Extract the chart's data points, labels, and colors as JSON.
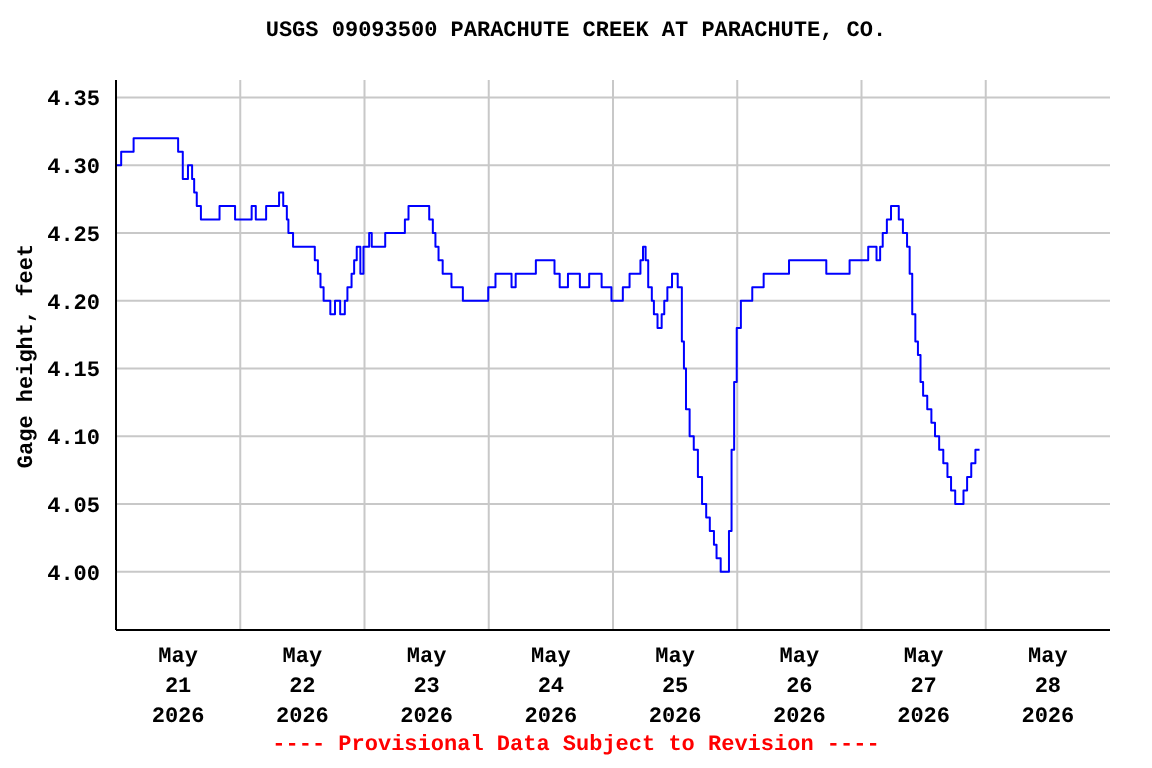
{
  "chart_data": {
    "type": "step",
    "title": "USGS 09093500 PARACHUTE CREEK AT PARACHUTE, CO.",
    "ylabel": "Gage height, feet",
    "annotations": [
      "---- Provisional Data Subject to Revision ----"
    ],
    "grid": true,
    "marker": "none",
    "xlim": [
      "2026-05-21T00:00",
      "2026-05-29T00:00"
    ],
    "xticks": [
      {
        "value": "2026-05-21T12:00",
        "label": "May 21 2026"
      },
      {
        "value": "2026-05-22T00:00",
        "label": null
      },
      {
        "value": "2026-05-22T12:00",
        "label": "May 22 2026"
      },
      {
        "value": "2026-05-23T00:00",
        "label": null
      },
      {
        "value": "2026-05-23T12:00",
        "label": "May 23 2026"
      },
      {
        "value": "2026-05-24T00:00",
        "label": null
      },
      {
        "value": "2026-05-24T12:00",
        "label": "May 24 2026"
      },
      {
        "value": "2026-05-25T00:00",
        "label": null
      },
      {
        "value": "2026-05-25T12:00",
        "label": "May 25 2026"
      },
      {
        "value": "2026-05-26T00:00",
        "label": null
      },
      {
        "value": "2026-05-26T12:00",
        "label": "May 26 2026"
      },
      {
        "value": "2026-05-27T00:00",
        "label": null
      },
      {
        "value": "2026-05-27T12:00",
        "label": "May 27 2026"
      },
      {
        "value": "2026-05-28T00:00",
        "label": null
      },
      {
        "value": "2026-05-28T12:00",
        "label": "May 28 2026"
      }
    ],
    "ylim": [
      3.957,
      4.363
    ],
    "yticks": [
      {
        "value": 4,
        "label": "4.00"
      },
      {
        "value": 4.05,
        "label": "4.05"
      },
      {
        "value": 4.1,
        "label": "4.10"
      },
      {
        "value": 4.15,
        "label": "4.15"
      },
      {
        "value": 4.2,
        "label": "4.20"
      },
      {
        "value": 4.25,
        "label": "4.25"
      },
      {
        "value": 4.3,
        "label": "4.30"
      },
      {
        "value": 4.35,
        "label": "4.35"
      }
    ],
    "series": [
      {
        "color": "#0000ff",
        "line_style": "solid",
        "x": [
          "2026-05-21T00:00",
          "2026-05-21T01:00",
          "2026-05-21T03:24",
          "2026-05-21T12:00",
          "2026-05-21T12:54",
          "2026-05-21T13:54",
          "2026-05-21T14:42",
          "2026-05-21T15:06",
          "2026-05-21T15:36",
          "2026-05-21T16:24",
          "2026-05-21T20:00",
          "2026-05-21T23:00",
          "2026-05-22T02:12",
          "2026-05-22T03:00",
          "2026-05-22T05:00",
          "2026-05-22T07:30",
          "2026-05-22T08:18",
          "2026-05-22T09:00",
          "2026-05-22T09:18",
          "2026-05-22T10:12",
          "2026-05-22T14:24",
          "2026-05-22T15:00",
          "2026-05-22T15:30",
          "2026-05-22T16:06",
          "2026-05-22T17:24",
          "2026-05-22T18:18",
          "2026-05-22T19:18",
          "2026-05-22T20:12",
          "2026-05-22T20:42",
          "2026-05-22T21:30",
          "2026-05-22T22:00",
          "2026-05-22T22:30",
          "2026-05-22T23:12",
          "2026-05-22T23:48",
          "2026-05-23T00:54",
          "2026-05-23T01:24",
          "2026-05-23T04:00",
          "2026-05-23T07:48",
          "2026-05-23T08:30",
          "2026-05-23T12:30",
          "2026-05-23T13:12",
          "2026-05-23T13:42",
          "2026-05-23T14:18",
          "2026-05-23T15:06",
          "2026-05-23T16:48",
          "2026-05-23T19:00",
          "2026-05-23T23:54",
          "2026-05-24T01:18",
          "2026-05-24T04:24",
          "2026-05-24T05:12",
          "2026-05-24T09:06",
          "2026-05-24T12:42",
          "2026-05-24T13:42",
          "2026-05-24T15:18",
          "2026-05-24T17:36",
          "2026-05-24T19:24",
          "2026-05-24T21:48",
          "2026-05-24T23:42",
          "2026-05-25T01:54",
          "2026-05-25T03:12",
          "2026-05-25T05:18",
          "2026-05-25T05:48",
          "2026-05-25T06:18",
          "2026-05-25T06:48",
          "2026-05-25T07:30",
          "2026-05-25T07:54",
          "2026-05-25T08:36",
          "2026-05-25T09:24",
          "2026-05-25T09:54",
          "2026-05-25T10:30",
          "2026-05-25T11:24",
          "2026-05-25T12:30",
          "2026-05-25T13:18",
          "2026-05-25T13:42",
          "2026-05-25T14:06",
          "2026-05-25T14:48",
          "2026-05-25T15:36",
          "2026-05-25T16:24",
          "2026-05-25T17:12",
          "2026-05-25T18:00",
          "2026-05-25T18:42",
          "2026-05-25T19:30",
          "2026-05-25T20:00",
          "2026-05-25T20:48",
          "2026-05-25T22:06",
          "2026-05-25T22:24",
          "2026-05-25T22:54",
          "2026-05-25T23:24",
          "2026-05-25T23:54",
          "2026-05-26T00:42",
          "2026-05-26T02:54",
          "2026-05-26T05:06",
          "2026-05-26T10:00",
          "2026-05-26T17:12",
          "2026-05-26T21:42",
          "2026-05-27T01:18",
          "2026-05-27T02:54",
          "2026-05-27T03:36",
          "2026-05-27T04:06",
          "2026-05-27T04:54",
          "2026-05-27T05:42",
          "2026-05-27T07:12",
          "2026-05-27T08:00",
          "2026-05-27T08:48",
          "2026-05-27T09:18",
          "2026-05-27T09:48",
          "2026-05-27T10:24",
          "2026-05-27T10:54",
          "2026-05-27T11:24",
          "2026-05-27T11:54",
          "2026-05-27T12:42",
          "2026-05-27T13:30",
          "2026-05-27T14:12",
          "2026-05-27T15:00",
          "2026-05-27T15:48",
          "2026-05-27T16:36",
          "2026-05-27T17:18",
          "2026-05-27T18:06",
          "2026-05-27T19:42",
          "2026-05-27T20:24",
          "2026-05-27T21:12",
          "2026-05-27T22:00",
          "2026-05-27T22:48"
        ],
        "values": [
          4.3,
          4.31,
          4.32,
          4.31,
          4.29,
          4.3,
          4.29,
          4.28,
          4.27,
          4.26,
          4.27,
          4.26,
          4.27,
          4.26,
          4.27,
          4.28,
          4.27,
          4.26,
          4.25,
          4.24,
          4.23,
          4.22,
          4.21,
          4.2,
          4.19,
          4.2,
          4.19,
          4.2,
          4.21,
          4.22,
          4.23,
          4.24,
          4.22,
          4.24,
          4.25,
          4.24,
          4.25,
          4.26,
          4.27,
          4.26,
          4.25,
          4.24,
          4.23,
          4.22,
          4.21,
          4.2,
          4.21,
          4.22,
          4.21,
          4.22,
          4.23,
          4.22,
          4.21,
          4.22,
          4.21,
          4.22,
          4.21,
          4.2,
          4.21,
          4.22,
          4.23,
          4.24,
          4.23,
          4.21,
          4.2,
          4.19,
          4.18,
          4.19,
          4.2,
          4.21,
          4.22,
          4.21,
          4.17,
          4.15,
          4.12,
          4.1,
          4.09,
          4.07,
          4.05,
          4.04,
          4.03,
          4.02,
          4.01,
          4.0,
          4.0,
          4.03,
          4.09,
          4.14,
          4.18,
          4.2,
          4.21,
          4.22,
          4.23,
          4.22,
          4.23,
          4.24,
          4.23,
          4.24,
          4.25,
          4.26,
          4.27,
          4.26,
          4.25,
          4.24,
          4.22,
          4.19,
          4.17,
          4.16,
          4.14,
          4.13,
          4.12,
          4.11,
          4.1,
          4.09,
          4.08,
          4.07,
          4.06,
          4.05,
          4.06,
          4.07,
          4.08,
          4.09,
          4.09
        ]
      }
    ]
  }
}
